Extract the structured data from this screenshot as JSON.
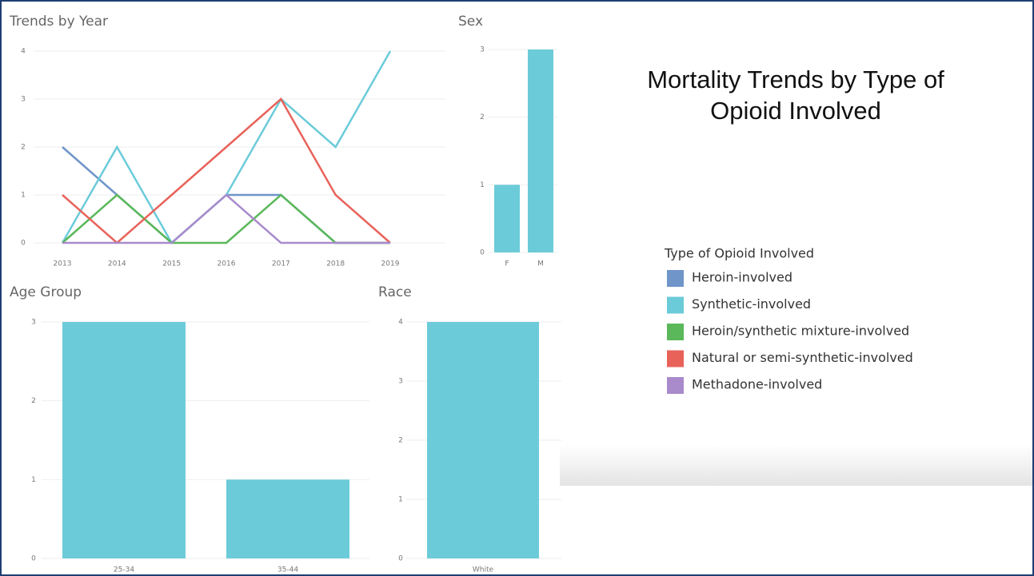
{
  "dashboard_title": [
    "Mortality Trends by Type of",
    "Opioid Involved"
  ],
  "legend_title": "Type of Opioid Involved",
  "chart_data": [
    {
      "type": "line",
      "title": "Trends by Year",
      "categories": [
        "2013",
        "2014",
        "2015",
        "2016",
        "2017",
        "2018",
        "2019"
      ],
      "series": [
        {
          "name": "Heroin-involved",
          "color": "#6f95c9",
          "values": [
            2,
            1,
            0,
            1,
            1,
            0,
            0
          ]
        },
        {
          "name": "Synthetic-involved",
          "color": "#6ccbd9",
          "values": [
            0,
            2,
            0,
            1,
            3,
            2,
            4
          ]
        },
        {
          "name": "Heroin/synthetic mixture-involved",
          "color": "#5ab85a",
          "values": [
            0,
            1,
            0,
            0,
            1,
            0,
            0
          ]
        },
        {
          "name": "Natural or semi-synthetic-involved",
          "color": "#e8625a",
          "values": [
            1,
            0,
            1,
            2,
            3,
            1,
            0
          ]
        },
        {
          "name": "Methadone-involved",
          "color": "#a98bcc",
          "values": [
            0,
            0,
            0,
            1,
            0,
            0,
            0
          ]
        }
      ],
      "ylim": [
        0,
        4
      ],
      "yticks": [
        0,
        1,
        2,
        3,
        4
      ],
      "grid": true
    },
    {
      "type": "bar",
      "title": "Sex",
      "categories": [
        "F",
        "M"
      ],
      "values": [
        1,
        3
      ],
      "color": "#6ccbd9",
      "ylim": [
        0,
        3
      ],
      "yticks": [
        0,
        1,
        2,
        3
      ],
      "grid": true
    },
    {
      "type": "bar",
      "title": "Age Group",
      "categories": [
        "25-34",
        "35-44"
      ],
      "values": [
        3,
        1
      ],
      "color": "#6ccbd9",
      "ylim": [
        0,
        3
      ],
      "yticks": [
        0,
        1,
        2,
        3
      ],
      "grid": true
    },
    {
      "type": "bar",
      "title": "Race",
      "categories": [
        "White"
      ],
      "values": [
        4
      ],
      "color": "#6ccbd9",
      "ylim": [
        0,
        4
      ],
      "yticks": [
        0,
        1,
        2,
        3,
        4
      ],
      "grid": true
    }
  ]
}
